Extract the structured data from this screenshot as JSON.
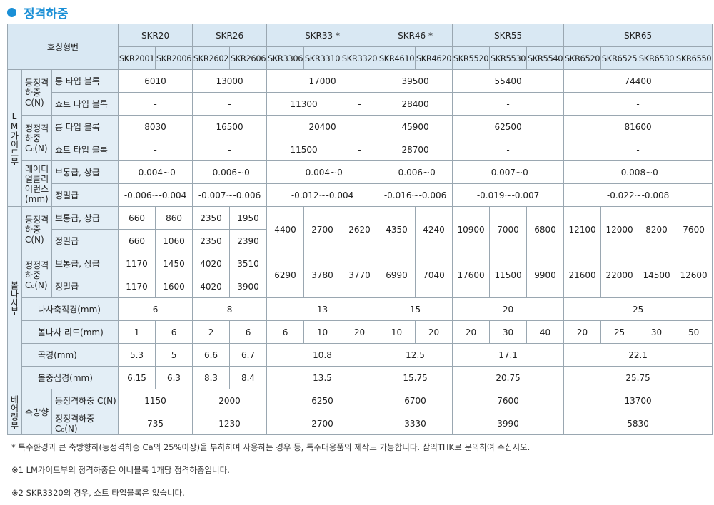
{
  "title": "정격하중",
  "table": {
    "header_label": "호칭형번",
    "series": [
      {
        "name": "SKR20",
        "models": [
          "SKR2001",
          "SKR2006"
        ]
      },
      {
        "name": "SKR26",
        "models": [
          "SKR2602",
          "SKR2606"
        ]
      },
      {
        "name": "SKR33 *",
        "models": [
          "SKR3306",
          "SKR3310",
          "SKR3320"
        ]
      },
      {
        "name": "SKR46 *",
        "models": [
          "SKR4610",
          "SKR4620"
        ]
      },
      {
        "name": "SKR55",
        "models": [
          "SKR5520",
          "SKR5530",
          "SKR5540"
        ]
      },
      {
        "name": "SKR65",
        "models": [
          "SKR6520",
          "SKR6525",
          "SKR6530",
          "SKR6550"
        ]
      }
    ],
    "sections": [
      {
        "label": "LM가이드부",
        "groups": [
          {
            "label": "동정격하중 C(N)",
            "rows": [
              {
                "label": "롱 타입 블록",
                "cells": [
                  "6010",
                  "13000",
                  "17000",
                  "39500",
                  "55400",
                  "74400"
                ]
              },
              {
                "label": "쇼트 타입 블록",
                "cells": [
                  "-",
                  "-",
                  "11300",
                  "-",
                  "28400",
                  "-",
                  "-"
                ]
              }
            ]
          },
          {
            "label": "정정격하중 C₀(N)",
            "rows": [
              {
                "label": "롱 타입 블록",
                "cells": [
                  "8030",
                  "16500",
                  "20400",
                  "45900",
                  "62500",
                  "81600"
                ]
              },
              {
                "label": "쇼트 타입 블록",
                "cells": [
                  "-",
                  "-",
                  "11500",
                  "-",
                  "28700",
                  "-",
                  "-"
                ]
              }
            ]
          },
          {
            "label": "레이디얼클리어런스 (mm)",
            "rows": [
              {
                "label": "보통급, 상급",
                "cells": [
                  "-0.004~0",
                  "-0.006~0",
                  "-0.004~0",
                  "-0.006~0",
                  "-0.007~0",
                  "-0.008~0"
                ]
              },
              {
                "label": "정밀급",
                "cells": [
                  "-0.006~-0.004",
                  "-0.007~-0.006",
                  "-0.012~-0.004",
                  "-0.016~-0.006",
                  "-0.019~-0.007",
                  "-0.022~-0.008"
                ]
              }
            ]
          }
        ]
      },
      {
        "label": "볼나사부",
        "groups": [
          {
            "label": "동정격하중 C(N)",
            "rows": [
              {
                "label": "보통급, 상급",
                "cells": [
                  "660",
                  "860",
                  "2350",
                  "1950",
                  "4400",
                  "2700",
                  "2620",
                  "4350",
                  "4240",
                  "10900",
                  "7000",
                  "6800",
                  "12100",
                  "12000",
                  "8200",
                  "7600"
                ]
              },
              {
                "label": "정밀급",
                "cells": [
                  "660",
                  "1060",
                  "2350",
                  "2390"
                ]
              }
            ]
          },
          {
            "label": "정정격하중 C₀(N)",
            "rows": [
              {
                "label": "보통급, 상급",
                "cells": [
                  "1170",
                  "1450",
                  "4020",
                  "3510",
                  "6290",
                  "3780",
                  "3770",
                  "6990",
                  "7040",
                  "17600",
                  "11500",
                  "9900",
                  "21600",
                  "22000",
                  "14500",
                  "12600"
                ]
              },
              {
                "label": "정밀급",
                "cells": [
                  "1170",
                  "1600",
                  "4020",
                  "3900"
                ]
              }
            ]
          },
          {
            "label": "나사축직경(mm)",
            "cells": [
              "6",
              "8",
              "13",
              "15",
              "20",
              "25"
            ]
          },
          {
            "label": "볼나사 리드(mm)",
            "cells": [
              "1",
              "6",
              "2",
              "6",
              "6",
              "10",
              "20",
              "10",
              "20",
              "20",
              "30",
              "40",
              "20",
              "25",
              "30",
              "50"
            ]
          },
          {
            "label": "곡경(mm)",
            "cells": [
              "5.3",
              "5",
              "6.6",
              "6.7",
              "10.8",
              "12.5",
              "17.1",
              "22.1"
            ]
          },
          {
            "label": "볼중심경(mm)",
            "cells": [
              "6.15",
              "6.3",
              "8.3",
              "8.4",
              "13.5",
              "15.75",
              "20.75",
              "25.75"
            ]
          }
        ]
      },
      {
        "label": "베어링부",
        "groups": [
          {
            "label": "축방향",
            "rows": [
              {
                "label": "동정격하중 C(N)",
                "cells": [
                  "1150",
                  "2000",
                  "6250",
                  "6700",
                  "7600",
                  "13700"
                ]
              },
              {
                "label": "정정격하중 C₀(N)",
                "cells": [
                  "735",
                  "1230",
                  "2700",
                  "3330",
                  "3990",
                  "5830"
                ]
              }
            ]
          }
        ]
      }
    ]
  },
  "notes": [
    "*  특수환경과 큰 축방향하(동정격하중 Ca의 25%이상)을 부하하여 사용하는 경우 등, 특주대응품의 제작도 가능합니다. 삼익THK로 문의하여 주십시오.",
    "※1  LM가이드부의 정격하중은 이너블록 1개당 정격하중입니다.",
    "※2  SKR3320의 경우, 쇼트 타입블록은 없습니다."
  ]
}
